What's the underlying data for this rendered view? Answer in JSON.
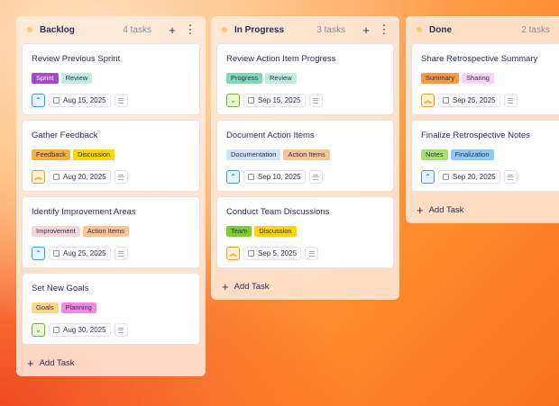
{
  "priority_styles": {
    "medium": {
      "icon": "chevron-up-icon",
      "glyph": "⌃",
      "color": "#3a9be0",
      "bg": "#e6f4ff"
    },
    "high": {
      "icon": "double-chevron-up-icon",
      "glyph": "︽",
      "color": "#f09a20",
      "bg": "#fff0d0"
    },
    "low": {
      "icon": "chevron-down-icon",
      "glyph": "⌄",
      "color": "#6bb52a",
      "bg": "#eaf8d8"
    }
  },
  "add_task_label": "Add Task",
  "columns": [
    {
      "title": "Backlog",
      "count": "4 tasks",
      "cards": [
        {
          "title": "Review Previous Sprint",
          "tags": [
            {
              "label": "Sprint",
              "color": "#a04ad0",
              "text": "#ffffff"
            },
            {
              "label": "Review",
              "color": "#c2ecdf"
            }
          ],
          "priority": "medium",
          "date": "Aug 15, 2025"
        },
        {
          "title": "Gather Feedback",
          "tags": [
            {
              "label": "Feedback",
              "color": "#fbb03b"
            },
            {
              "label": "Discussion",
              "color": "#ffd500"
            }
          ],
          "priority": "high",
          "date": "Aug 20, 2025"
        },
        {
          "title": "Identify Improvement Areas",
          "tags": [
            {
              "label": "Improvement",
              "color": "#f8d6d6"
            },
            {
              "label": "Action Items",
              "color": "#fcc393"
            }
          ],
          "priority": "medium",
          "date": "Aug 25, 2025"
        },
        {
          "title": "Set New Goals",
          "tags": [
            {
              "label": "Goals",
              "color": "#ffd68a"
            },
            {
              "label": "Planning",
              "color": "#f08ae0"
            }
          ],
          "priority": "low",
          "date": "Aug 30, 2025"
        }
      ]
    },
    {
      "title": "In Progress",
      "count": "3 tasks",
      "cards": [
        {
          "title": "Review Action Item Progress",
          "tags": [
            {
              "label": "Progress",
              "color": "#7ed9b8"
            },
            {
              "label": "Review",
              "color": "#c2ecdf"
            }
          ],
          "priority": "low",
          "date": "Sep 15, 2025"
        },
        {
          "title": "Document Action Items",
          "tags": [
            {
              "label": "Documentation",
              "color": "#cfe4f8"
            },
            {
              "label": "Action Items",
              "color": "#fcc393"
            }
          ],
          "priority": "medium",
          "date": "Sep 10, 2025"
        },
        {
          "title": "Conduct Team Discussions",
          "tags": [
            {
              "label": "Team",
              "color": "#7ccf2a"
            },
            {
              "label": "Discussion",
              "color": "#ffd500"
            }
          ],
          "priority": "high",
          "date": "Sep 5, 2025"
        }
      ]
    },
    {
      "title": "Done",
      "count": "2 tasks",
      "cards": [
        {
          "title": "Share Retrospective Summary",
          "tags": [
            {
              "label": "Summary",
              "color": "#fb9a3b"
            },
            {
              "label": "Sharing",
              "color": "#f9d4f4"
            }
          ],
          "priority": "high",
          "date": "Sep 25, 2025"
        },
        {
          "title": "Finalize Retrospective Notes",
          "tags": [
            {
              "label": "Notes",
              "color": "#a8e070"
            },
            {
              "label": "Finalization",
              "color": "#8ec8f4"
            }
          ],
          "priority": "medium",
          "date": "Sep 20, 2025"
        }
      ]
    }
  ]
}
